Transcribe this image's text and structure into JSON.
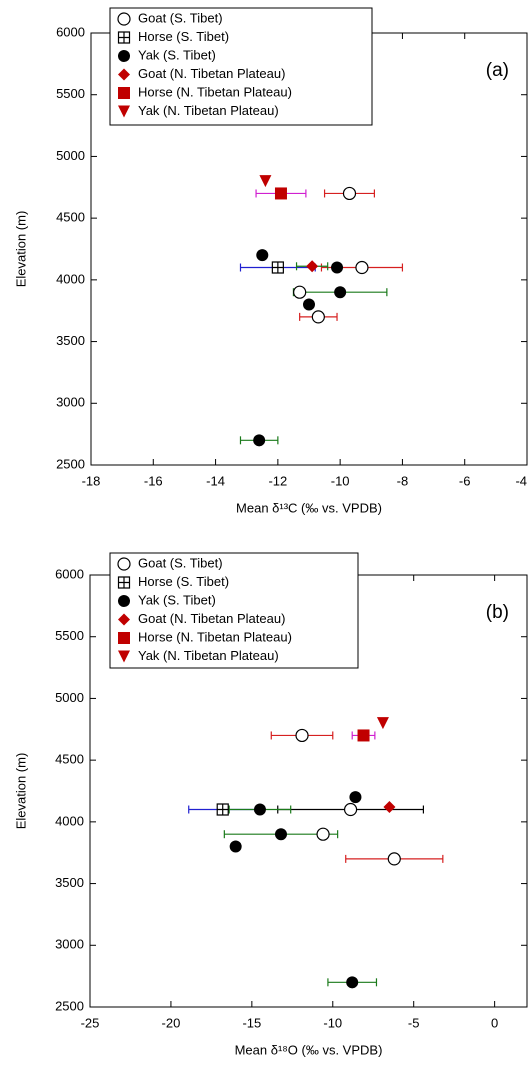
{
  "chart_data": [
    {
      "type": "scatter",
      "panel_label": "(a)",
      "x_label": "Mean δ¹³C (‰ vs. VPDB)",
      "y_label": "Elevation (m)",
      "xlim": [
        -18,
        -4
      ],
      "xticks": [
        -18,
        -16,
        -14,
        -12,
        -10,
        -8,
        -6,
        -4
      ],
      "ylim": [
        2500,
        6000
      ],
      "yticks": [
        2500,
        3000,
        3500,
        4000,
        4500,
        5000,
        5500,
        6000
      ],
      "legend": "upper left",
      "series": [
        {
          "name": "Goat (S. Tibet)",
          "marker": "open-circle",
          "color": "#000000",
          "x": [
            -9.7,
            -9.3,
            -11.3,
            -10.7
          ],
          "y": [
            4700,
            4100,
            3900,
            3700
          ],
          "errors": [
            0.8,
            1.3,
            null,
            0.6
          ],
          "error_colors": [
            "#d62020",
            "#d62020",
            null,
            "#d62020"
          ]
        },
        {
          "name": "Horse (S. Tibet)",
          "marker": "boxed-plus",
          "color": "#000000",
          "x": [
            -12.0
          ],
          "y": [
            4100
          ],
          "errors": [
            1.2
          ],
          "error_colors": [
            "#2020d0"
          ]
        },
        {
          "name": "Yak (S. Tibet)",
          "marker": "filled-circle",
          "color": "#000000",
          "x": [
            -12.5,
            -10.1,
            -10.0,
            -11.0,
            -12.6
          ],
          "y": [
            4200,
            4100,
            3900,
            3800,
            2700
          ],
          "errors": [
            null,
            null,
            1.5,
            null,
            0.6
          ],
          "error_colors": [
            null,
            null,
            "#1a7a1a",
            null,
            "#1a7a1a"
          ]
        },
        {
          "name": "Goat (N. Tibetan Plateau)",
          "marker": "diamond",
          "color": "#c00000",
          "x": [
            -10.9
          ],
          "y": [
            4110
          ],
          "errors": [
            0.5
          ],
          "error_colors": [
            "#1a7a1a"
          ]
        },
        {
          "name": "Horse (N. Tibetan Plateau)",
          "marker": "square",
          "color": "#c00000",
          "x": [
            -11.9
          ],
          "y": [
            4700
          ],
          "errors": [
            0.8
          ],
          "error_colors": [
            "#d020d0"
          ]
        },
        {
          "name": "Yak (N. Tibetan Plateau)",
          "marker": "triangle-down",
          "color": "#c00000",
          "x": [
            -12.4
          ],
          "y": [
            4800
          ],
          "errors": [
            null
          ],
          "error_colors": [
            null
          ]
        }
      ]
    },
    {
      "type": "scatter",
      "panel_label": "(b)",
      "x_label": "Mean δ¹⁸O (‰ vs. VPDB)",
      "y_label": "Elevation (m)",
      "xlim": [
        -25,
        2
      ],
      "xticks": [
        -25,
        -20,
        -15,
        -10,
        -5,
        0
      ],
      "ylim": [
        2500,
        6000
      ],
      "yticks": [
        2500,
        3000,
        3500,
        4000,
        4500,
        5000,
        5500,
        6000
      ],
      "legend": "upper left",
      "series": [
        {
          "name": "Goat (S. Tibet)",
          "marker": "open-circle",
          "color": "#000000",
          "x": [
            -11.9,
            -8.9,
            -10.6,
            -6.2
          ],
          "y": [
            4700,
            4100,
            3900,
            3700
          ],
          "errors": [
            1.9,
            4.5,
            null,
            3.0
          ],
          "error_colors": [
            "#d62020",
            "#000000",
            null,
            "#d62020"
          ]
        },
        {
          "name": "Horse (S. Tibet)",
          "marker": "boxed-plus",
          "color": "#000000",
          "x": [
            -16.8
          ],
          "y": [
            4100
          ],
          "errors": [
            2.1
          ],
          "error_colors": [
            "#2020d0"
          ]
        },
        {
          "name": "Yak (S. Tibet)",
          "marker": "filled-circle",
          "color": "#000000",
          "x": [
            -8.6,
            -14.5,
            -13.2,
            -16.0,
            -8.8
          ],
          "y": [
            4200,
            4100,
            3900,
            3800,
            2700
          ],
          "errors": [
            null,
            1.9,
            3.5,
            null,
            1.5
          ],
          "error_colors": [
            null,
            "#1a7a1a",
            "#1a7a1a",
            null,
            "#1a7a1a"
          ]
        },
        {
          "name": "Goat (N. Tibetan Plateau)",
          "marker": "diamond",
          "color": "#c00000",
          "x": [
            -6.5
          ],
          "y": [
            4120
          ],
          "errors": [
            null
          ],
          "error_colors": [
            null
          ]
        },
        {
          "name": "Horse (N. Tibetan Plateau)",
          "marker": "square",
          "color": "#c00000",
          "x": [
            -8.1
          ],
          "y": [
            4700
          ],
          "errors": [
            0.7
          ],
          "error_colors": [
            "#d020d0"
          ]
        },
        {
          "name": "Yak (N. Tibetan Plateau)",
          "marker": "triangle-down",
          "color": "#c00000",
          "x": [
            -6.9
          ],
          "y": [
            4800
          ],
          "errors": [
            null
          ],
          "error_colors": [
            null
          ]
        }
      ]
    }
  ]
}
